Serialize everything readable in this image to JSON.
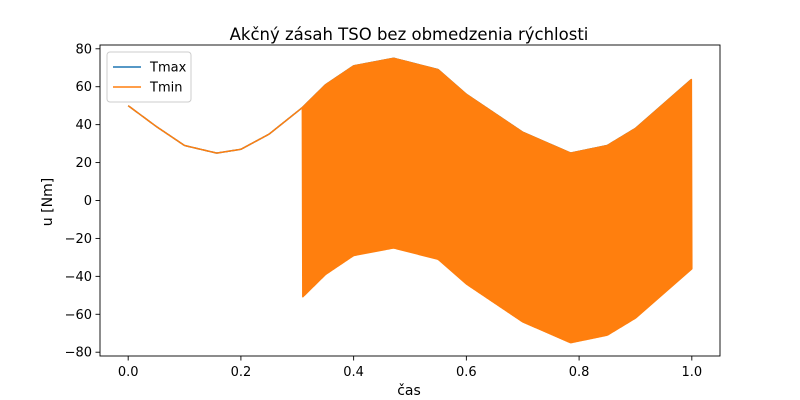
{
  "chart_data": {
    "type": "line",
    "title": "Akčný zásah TSO bez obmedzenia rýchlosti",
    "xlabel": "čas",
    "ylabel": "u [Nm]",
    "xlim": [
      -0.05,
      1.05
    ],
    "ylim": [
      -82,
      82
    ],
    "xticks": [
      0.0,
      0.2,
      0.4,
      0.6,
      0.8,
      1.0
    ],
    "xtick_labels": [
      "0.0",
      "0.2",
      "0.4",
      "0.6",
      "0.8",
      "1.0"
    ],
    "yticks": [
      -80,
      -60,
      -40,
      -20,
      0,
      20,
      40,
      60,
      80
    ],
    "ytick_labels": [
      "−80",
      "−60",
      "−40",
      "−20",
      "0",
      "20",
      "40",
      "60",
      "80"
    ],
    "grid": false,
    "legend": {
      "position": "top-left"
    },
    "series": [
      {
        "name": "Tmax",
        "color": "#1f77b4",
        "x": [
          0.0,
          0.05,
          0.1,
          0.157,
          0.2,
          0.25,
          0.309,
          0.35,
          0.4,
          0.471,
          0.55,
          0.6,
          0.7,
          0.785,
          0.85,
          0.9,
          0.95,
          1.0
        ],
        "y": [
          50,
          39,
          29,
          25,
          27,
          35,
          49,
          61,
          71,
          75,
          69,
          56,
          36,
          25,
          29,
          38,
          51,
          64
        ]
      },
      {
        "name": "Tmin",
        "color": "#ff7f0e",
        "chattering": {
          "x_start": 0.309,
          "x_end": 1.0
        },
        "upper_envelope": {
          "x": [
            0.0,
            0.05,
            0.1,
            0.157,
            0.2,
            0.25,
            0.309,
            0.35,
            0.4,
            0.471,
            0.55,
            0.6,
            0.7,
            0.785,
            0.85,
            0.9,
            0.95,
            1.0
          ],
          "y": [
            50,
            39,
            29,
            25,
            27,
            35,
            49,
            61,
            71,
            75,
            69,
            56,
            36,
            25,
            29,
            38,
            51,
            64
          ]
        },
        "lower_envelope": {
          "x": [
            0.309,
            0.35,
            0.4,
            0.471,
            0.55,
            0.6,
            0.7,
            0.785,
            0.85,
            0.9,
            0.95,
            1.0
          ],
          "y": [
            -51,
            -39,
            -29,
            -25,
            -31,
            -44,
            -64,
            -75,
            -71,
            -62,
            -49,
            -36
          ]
        }
      }
    ]
  }
}
